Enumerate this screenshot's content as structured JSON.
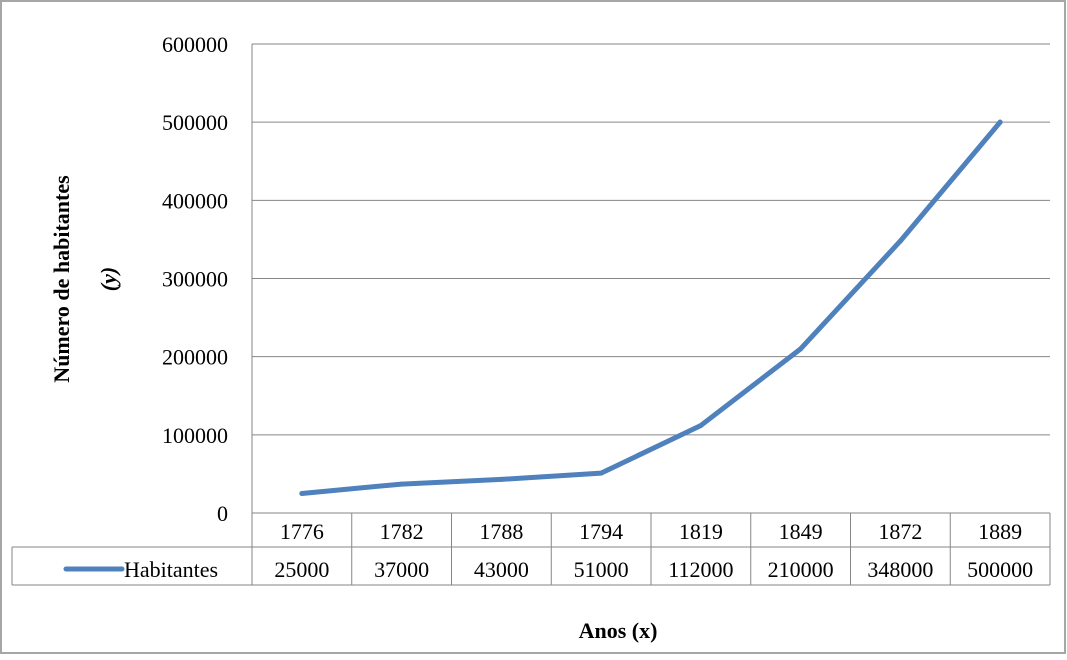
{
  "chart_data": {
    "type": "line",
    "categories": [
      "1776",
      "1782",
      "1788",
      "1794",
      "1819",
      "1849",
      "1872",
      "1889"
    ],
    "series": [
      {
        "name": "Habitantes",
        "values": [
          25000,
          37000,
          43000,
          51000,
          112000,
          210000,
          348000,
          500000
        ],
        "color": "#4F81BD"
      }
    ],
    "data_table": {
      "visible": true,
      "row_label": "Habitantes",
      "cells": [
        "25000",
        "37000",
        "43000",
        "51000",
        "112000",
        "210000",
        "348000",
        "500000"
      ]
    },
    "title": "",
    "xlabel": "Anos (x)",
    "ylabel_line1": "Número de habitantes",
    "ylabel_line2": "(y)",
    "ylim": [
      0,
      600000
    ],
    "yticks": [
      "0",
      "100000",
      "200000",
      "300000",
      "400000",
      "500000",
      "600000"
    ],
    "grid": true,
    "legend": "in-data-table",
    "gridline_color": "#868686",
    "frame_color": "#868686"
  }
}
